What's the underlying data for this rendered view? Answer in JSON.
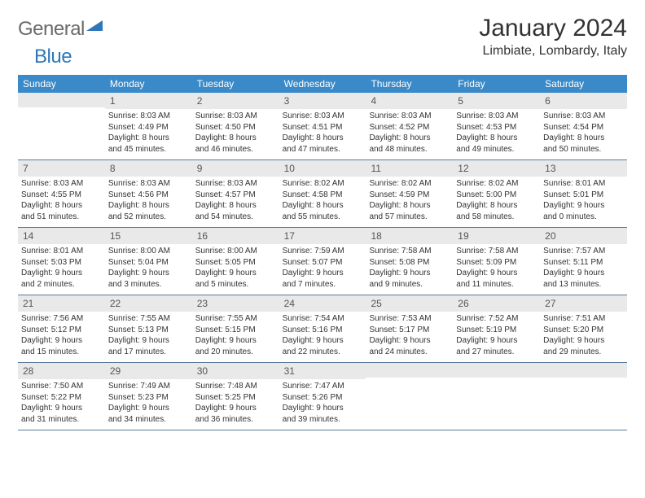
{
  "logo": {
    "part1": "General",
    "part2": "Blue"
  },
  "title": "January 2024",
  "location": "Limbiate, Lombardy, Italy",
  "day_headers": [
    "Sunday",
    "Monday",
    "Tuesday",
    "Wednesday",
    "Thursday",
    "Friday",
    "Saturday"
  ],
  "colors": {
    "header_bg": "#3a8ac9",
    "header_text": "#ffffff",
    "daynum_bg": "#e9e9e9",
    "week_border": "#5a7a9a",
    "text": "#333333",
    "logo_gray": "#6a6a6a",
    "logo_blue": "#2f77b8"
  },
  "weeks": [
    [
      {
        "n": "",
        "lines": []
      },
      {
        "n": "1",
        "lines": [
          "Sunrise: 8:03 AM",
          "Sunset: 4:49 PM",
          "Daylight: 8 hours",
          "and 45 minutes."
        ]
      },
      {
        "n": "2",
        "lines": [
          "Sunrise: 8:03 AM",
          "Sunset: 4:50 PM",
          "Daylight: 8 hours",
          "and 46 minutes."
        ]
      },
      {
        "n": "3",
        "lines": [
          "Sunrise: 8:03 AM",
          "Sunset: 4:51 PM",
          "Daylight: 8 hours",
          "and 47 minutes."
        ]
      },
      {
        "n": "4",
        "lines": [
          "Sunrise: 8:03 AM",
          "Sunset: 4:52 PM",
          "Daylight: 8 hours",
          "and 48 minutes."
        ]
      },
      {
        "n": "5",
        "lines": [
          "Sunrise: 8:03 AM",
          "Sunset: 4:53 PM",
          "Daylight: 8 hours",
          "and 49 minutes."
        ]
      },
      {
        "n": "6",
        "lines": [
          "Sunrise: 8:03 AM",
          "Sunset: 4:54 PM",
          "Daylight: 8 hours",
          "and 50 minutes."
        ]
      }
    ],
    [
      {
        "n": "7",
        "lines": [
          "Sunrise: 8:03 AM",
          "Sunset: 4:55 PM",
          "Daylight: 8 hours",
          "and 51 minutes."
        ]
      },
      {
        "n": "8",
        "lines": [
          "Sunrise: 8:03 AM",
          "Sunset: 4:56 PM",
          "Daylight: 8 hours",
          "and 52 minutes."
        ]
      },
      {
        "n": "9",
        "lines": [
          "Sunrise: 8:03 AM",
          "Sunset: 4:57 PM",
          "Daylight: 8 hours",
          "and 54 minutes."
        ]
      },
      {
        "n": "10",
        "lines": [
          "Sunrise: 8:02 AM",
          "Sunset: 4:58 PM",
          "Daylight: 8 hours",
          "and 55 minutes."
        ]
      },
      {
        "n": "11",
        "lines": [
          "Sunrise: 8:02 AM",
          "Sunset: 4:59 PM",
          "Daylight: 8 hours",
          "and 57 minutes."
        ]
      },
      {
        "n": "12",
        "lines": [
          "Sunrise: 8:02 AM",
          "Sunset: 5:00 PM",
          "Daylight: 8 hours",
          "and 58 minutes."
        ]
      },
      {
        "n": "13",
        "lines": [
          "Sunrise: 8:01 AM",
          "Sunset: 5:01 PM",
          "Daylight: 9 hours",
          "and 0 minutes."
        ]
      }
    ],
    [
      {
        "n": "14",
        "lines": [
          "Sunrise: 8:01 AM",
          "Sunset: 5:03 PM",
          "Daylight: 9 hours",
          "and 2 minutes."
        ]
      },
      {
        "n": "15",
        "lines": [
          "Sunrise: 8:00 AM",
          "Sunset: 5:04 PM",
          "Daylight: 9 hours",
          "and 3 minutes."
        ]
      },
      {
        "n": "16",
        "lines": [
          "Sunrise: 8:00 AM",
          "Sunset: 5:05 PM",
          "Daylight: 9 hours",
          "and 5 minutes."
        ]
      },
      {
        "n": "17",
        "lines": [
          "Sunrise: 7:59 AM",
          "Sunset: 5:07 PM",
          "Daylight: 9 hours",
          "and 7 minutes."
        ]
      },
      {
        "n": "18",
        "lines": [
          "Sunrise: 7:58 AM",
          "Sunset: 5:08 PM",
          "Daylight: 9 hours",
          "and 9 minutes."
        ]
      },
      {
        "n": "19",
        "lines": [
          "Sunrise: 7:58 AM",
          "Sunset: 5:09 PM",
          "Daylight: 9 hours",
          "and 11 minutes."
        ]
      },
      {
        "n": "20",
        "lines": [
          "Sunrise: 7:57 AM",
          "Sunset: 5:11 PM",
          "Daylight: 9 hours",
          "and 13 minutes."
        ]
      }
    ],
    [
      {
        "n": "21",
        "lines": [
          "Sunrise: 7:56 AM",
          "Sunset: 5:12 PM",
          "Daylight: 9 hours",
          "and 15 minutes."
        ]
      },
      {
        "n": "22",
        "lines": [
          "Sunrise: 7:55 AM",
          "Sunset: 5:13 PM",
          "Daylight: 9 hours",
          "and 17 minutes."
        ]
      },
      {
        "n": "23",
        "lines": [
          "Sunrise: 7:55 AM",
          "Sunset: 5:15 PM",
          "Daylight: 9 hours",
          "and 20 minutes."
        ]
      },
      {
        "n": "24",
        "lines": [
          "Sunrise: 7:54 AM",
          "Sunset: 5:16 PM",
          "Daylight: 9 hours",
          "and 22 minutes."
        ]
      },
      {
        "n": "25",
        "lines": [
          "Sunrise: 7:53 AM",
          "Sunset: 5:17 PM",
          "Daylight: 9 hours",
          "and 24 minutes."
        ]
      },
      {
        "n": "26",
        "lines": [
          "Sunrise: 7:52 AM",
          "Sunset: 5:19 PM",
          "Daylight: 9 hours",
          "and 27 minutes."
        ]
      },
      {
        "n": "27",
        "lines": [
          "Sunrise: 7:51 AM",
          "Sunset: 5:20 PM",
          "Daylight: 9 hours",
          "and 29 minutes."
        ]
      }
    ],
    [
      {
        "n": "28",
        "lines": [
          "Sunrise: 7:50 AM",
          "Sunset: 5:22 PM",
          "Daylight: 9 hours",
          "and 31 minutes."
        ]
      },
      {
        "n": "29",
        "lines": [
          "Sunrise: 7:49 AM",
          "Sunset: 5:23 PM",
          "Daylight: 9 hours",
          "and 34 minutes."
        ]
      },
      {
        "n": "30",
        "lines": [
          "Sunrise: 7:48 AM",
          "Sunset: 5:25 PM",
          "Daylight: 9 hours",
          "and 36 minutes."
        ]
      },
      {
        "n": "31",
        "lines": [
          "Sunrise: 7:47 AM",
          "Sunset: 5:26 PM",
          "Daylight: 9 hours",
          "and 39 minutes."
        ]
      },
      {
        "n": "",
        "lines": []
      },
      {
        "n": "",
        "lines": []
      },
      {
        "n": "",
        "lines": []
      }
    ]
  ]
}
